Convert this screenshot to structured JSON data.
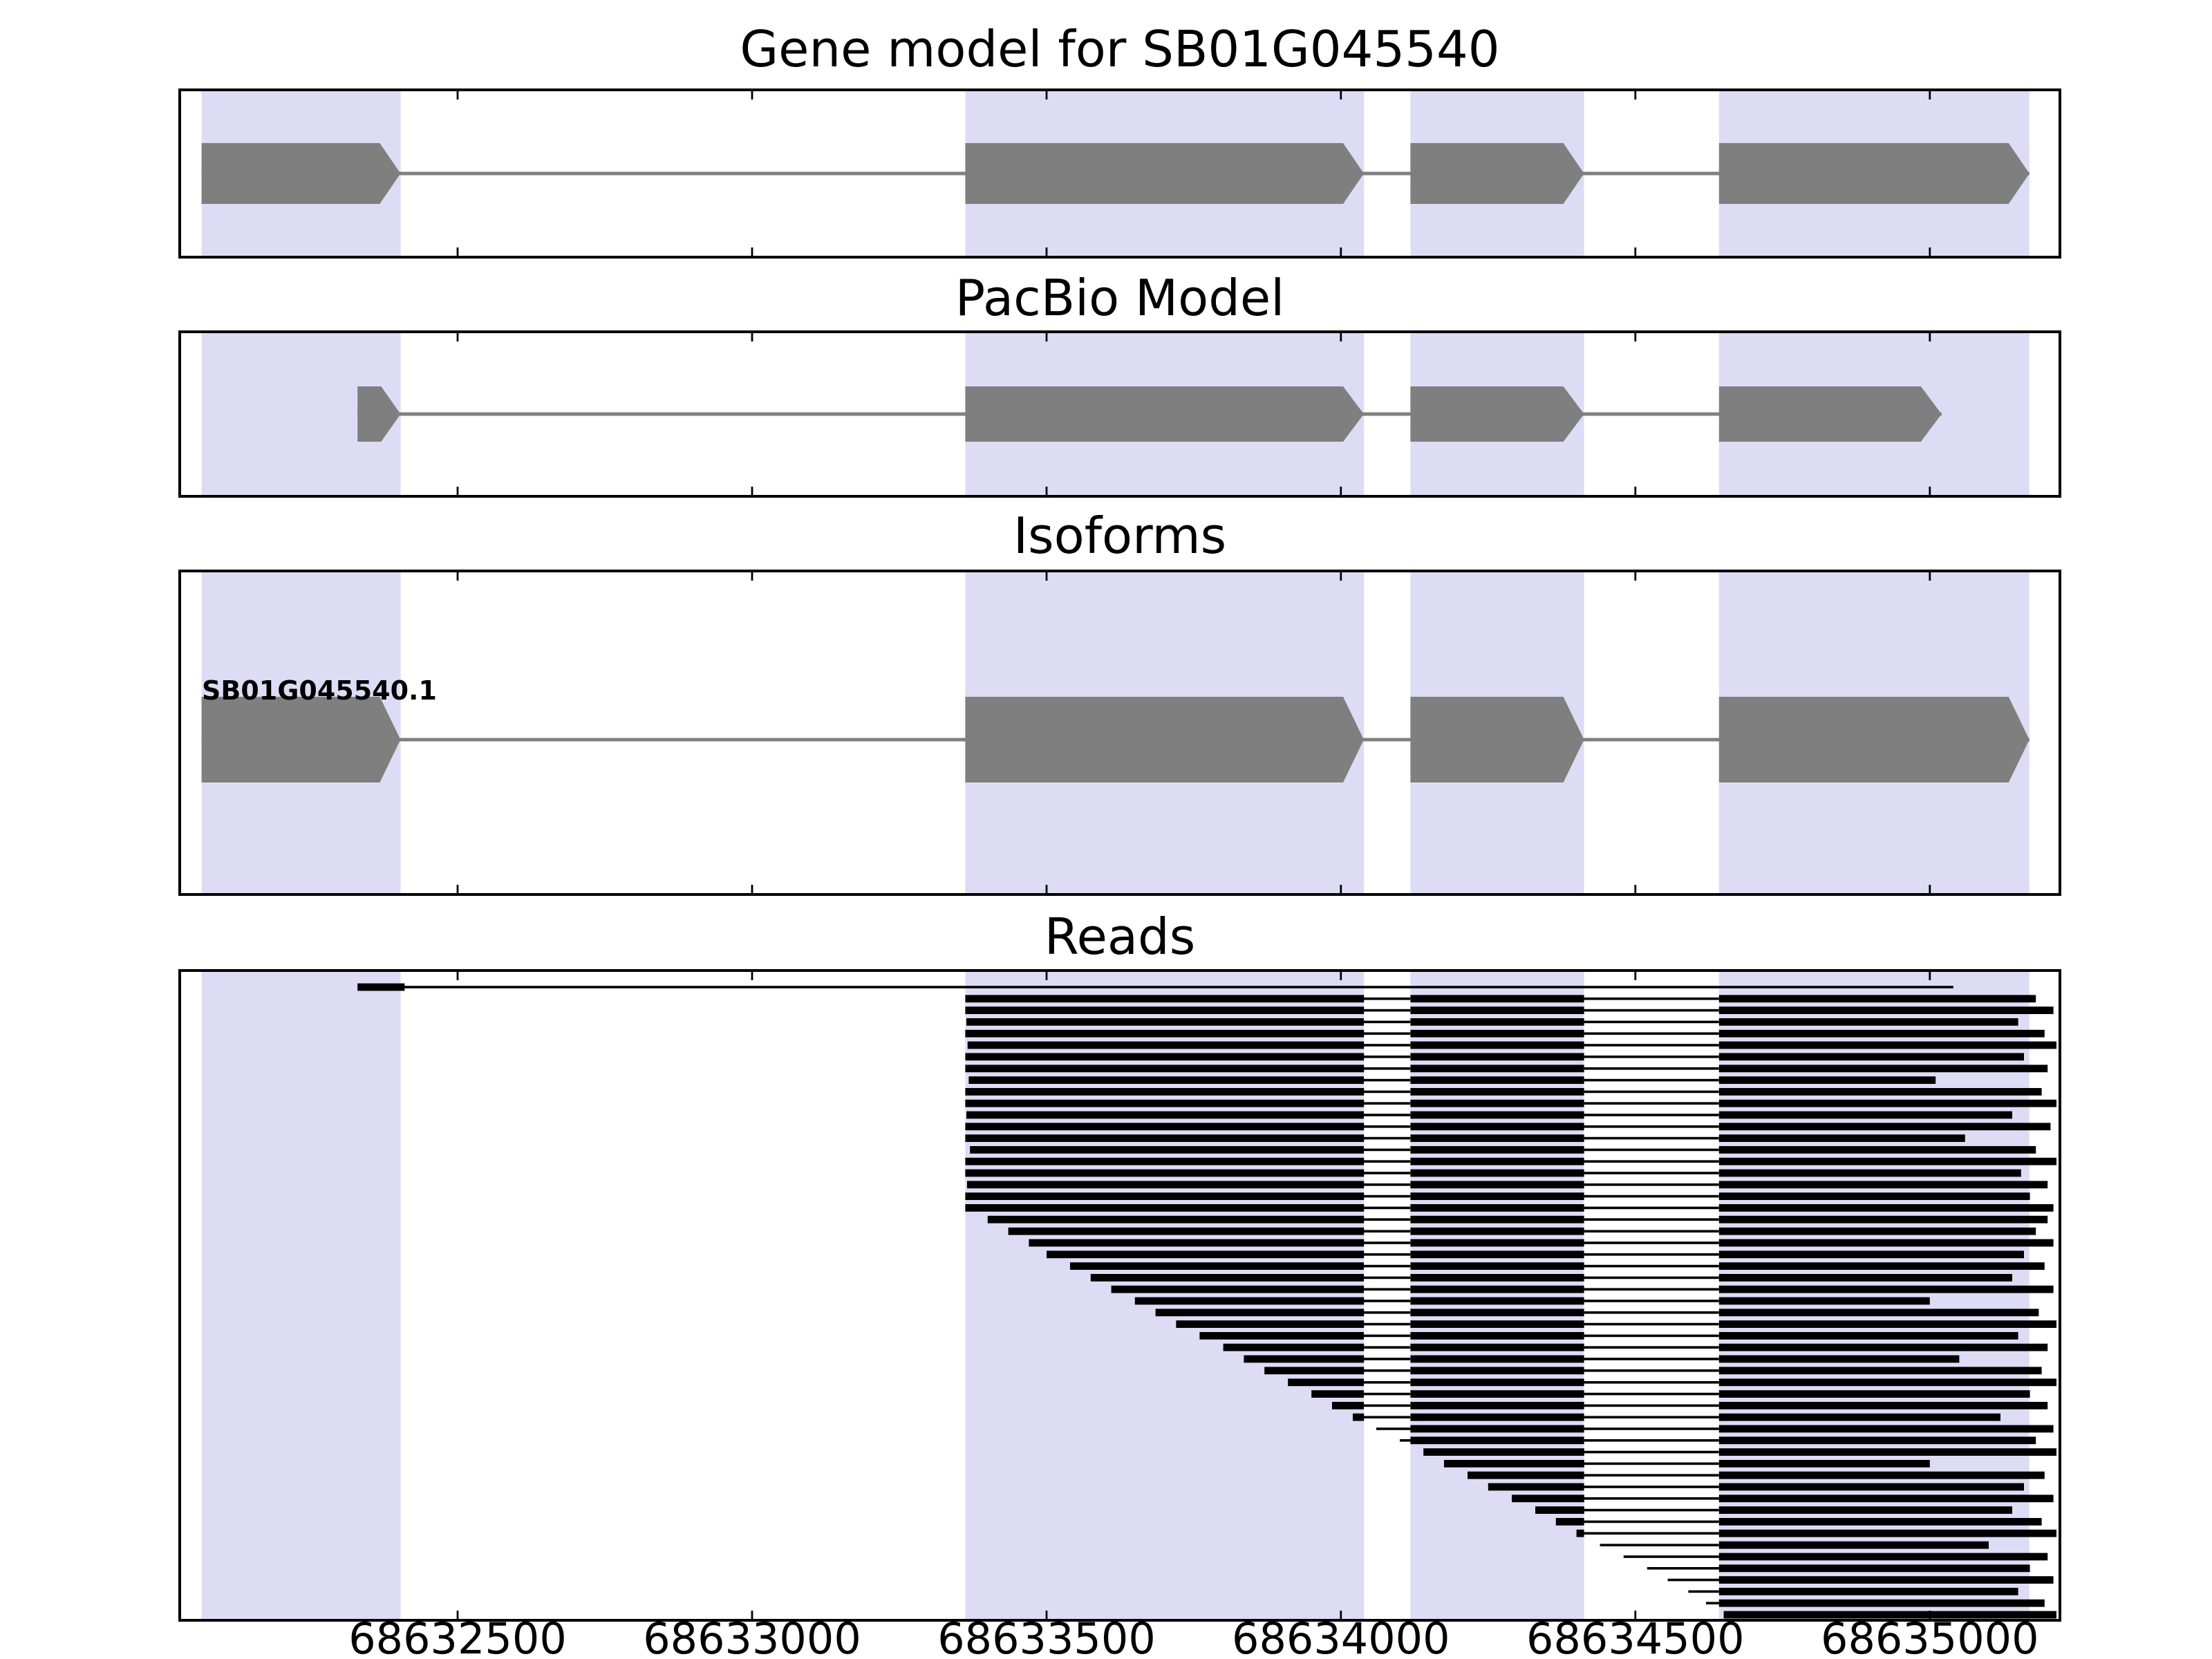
{
  "chart_data": {
    "type": "genome-annotation-tracks",
    "title": "Gene model for SB01G045540",
    "xlabel": "",
    "x_axis": {
      "min": 68632028,
      "max": 68635221,
      "ticks": [
        68632500,
        68633000,
        68633500,
        68634000,
        68634500,
        68635000
      ],
      "tick_labels": [
        "68632500",
        "68633000",
        "68633500",
        "68634000",
        "68634500",
        "68635000"
      ]
    },
    "colors": {
      "exon": "#7f7f7f",
      "highlight": "#dedcf5",
      "read": "#000000",
      "border": "#000000",
      "background": "#ffffff"
    },
    "highlight_regions": [
      [
        68632065,
        68632403
      ],
      [
        68633362,
        68634039
      ],
      [
        68634118,
        68634413
      ],
      [
        68634642,
        68635169
      ]
    ],
    "tracks": {
      "gene_model": {
        "title": "Gene model for SB01G045540",
        "strand": "+",
        "exons": [
          [
            68632065,
            68632403
          ],
          [
            68633362,
            68634039
          ],
          [
            68634118,
            68634413
          ],
          [
            68634642,
            68635169
          ]
        ]
      },
      "pacbio": {
        "title": "PacBio Model",
        "strand": "+",
        "exons": [
          [
            68632330,
            68632403
          ],
          [
            68633362,
            68634039
          ],
          [
            68634118,
            68634413
          ],
          [
            68634642,
            68635020
          ]
        ]
      },
      "isoforms": {
        "title": "Isoforms",
        "label": "SB01G045540.1",
        "strand": "+",
        "exons": [
          [
            68632065,
            68632403
          ],
          [
            68633362,
            68634039
          ],
          [
            68634118,
            68634413
          ],
          [
            68634642,
            68635169
          ]
        ]
      },
      "reads": {
        "title": "Reads",
        "gap_regions": [
          [
            68632410,
            68633362
          ],
          [
            68634039,
            68634118
          ],
          [
            68634413,
            68634642
          ]
        ],
        "reads": [
          [
            68632330,
            68635040,
            68632410
          ],
          [
            68633362,
            68635180
          ],
          [
            68633362,
            68635210
          ],
          [
            68633364,
            68635150
          ],
          [
            68633362,
            68635195
          ],
          [
            68633366,
            68635215
          ],
          [
            68633362,
            68635160
          ],
          [
            68633362,
            68635200
          ],
          [
            68633368,
            68635010
          ],
          [
            68633362,
            68635190
          ],
          [
            68633362,
            68635215
          ],
          [
            68633364,
            68635140
          ],
          [
            68633362,
            68635205
          ],
          [
            68633362,
            68635060
          ],
          [
            68633370,
            68635180
          ],
          [
            68633362,
            68635215
          ],
          [
            68633362,
            68635155
          ],
          [
            68633365,
            68635200
          ],
          [
            68633362,
            68635170
          ],
          [
            68633362,
            68635210
          ],
          [
            68633400,
            68635200
          ],
          [
            68633435,
            68635180
          ],
          [
            68633470,
            68635210
          ],
          [
            68633500,
            68635160
          ],
          [
            68633540,
            68635195
          ],
          [
            68633575,
            68635140
          ],
          [
            68633610,
            68635210
          ],
          [
            68633650,
            68635000
          ],
          [
            68633685,
            68635185
          ],
          [
            68633720,
            68635215
          ],
          [
            68633760,
            68635150
          ],
          [
            68633800,
            68635200
          ],
          [
            68633835,
            68635050
          ],
          [
            68633870,
            68635190
          ],
          [
            68633910,
            68635215
          ],
          [
            68633950,
            68635170
          ],
          [
            68633985,
            68635200
          ],
          [
            68634020,
            68635120
          ],
          [
            68634060,
            68635210
          ],
          [
            68634100,
            68635180
          ],
          [
            68634140,
            68635215
          ],
          [
            68634175,
            68635000
          ],
          [
            68634215,
            68635195
          ],
          [
            68634250,
            68635160
          ],
          [
            68634290,
            68635210
          ],
          [
            68634330,
            68635140
          ],
          [
            68634365,
            68635190
          ],
          [
            68634400,
            68635215
          ],
          [
            68634440,
            68635100
          ],
          [
            68634480,
            68635200
          ],
          [
            68634520,
            68635170
          ],
          [
            68634555,
            68635210
          ],
          [
            68634590,
            68635150
          ],
          [
            68634620,
            68635195
          ],
          [
            68634650,
            68635215
          ]
        ]
      }
    }
  }
}
